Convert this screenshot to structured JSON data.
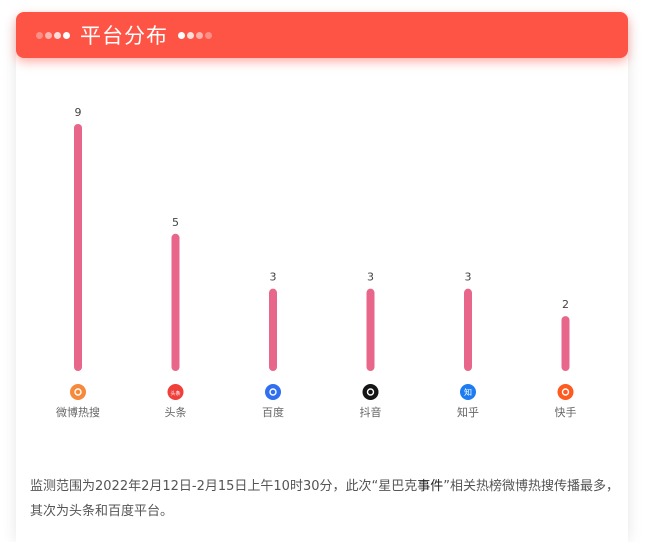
{
  "header": {
    "title": "平台分布"
  },
  "chart_data": {
    "type": "bar",
    "categories": [
      "微博热搜",
      "头条",
      "百度",
      "抖音",
      "知乎",
      "快手"
    ],
    "values": [
      9,
      5,
      3,
      3,
      3,
      2
    ],
    "ylim": [
      0,
      9
    ],
    "grid": false,
    "bar_color": "#e8668a",
    "icon_colors": [
      "#f7893b",
      "#f0403c",
      "#2f6ff0",
      "#161616",
      "#1e7cf2",
      "#ff5a1f"
    ],
    "icons": [
      "weibo-icon",
      "toutiao-icon",
      "baidu-icon",
      "douyin-icon",
      "zhihu-icon",
      "kuaishou-icon"
    ],
    "icon_text": [
      "",
      "头条",
      "",
      "",
      "知",
      ""
    ]
  },
  "description": {
    "part1": "监测范围为2022年2月12日-2月15日上午10时30分，此次“星巴克",
    "part2": "事件",
    "part3": "”相关热榜微博热搜传播最多，其次为头条和百度平台。"
  }
}
